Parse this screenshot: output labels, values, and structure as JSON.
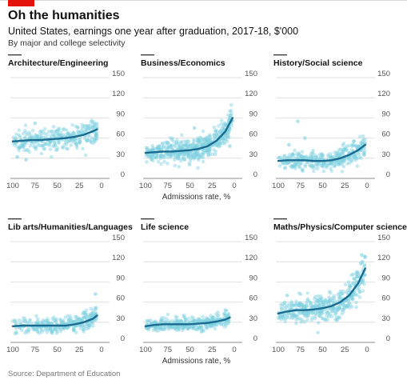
{
  "title": "Oh the humanities",
  "subtitle": "United States, earnings one year after graduation, 2017-18, $'000",
  "subtitle2": "By major and college selectivity",
  "source": "Source: Department of Education",
  "colors": {
    "dots": "#7fd0df",
    "trend": "#1b6a8f",
    "accent": "#e3120b",
    "grid": "#d9d9d9"
  },
  "chart_data": [
    {
      "type": "scatter",
      "title": "Architecture/Engineering",
      "xlabel": "",
      "ylabel": "",
      "xlim": [
        100,
        0
      ],
      "ylim": [
        0,
        150
      ],
      "x_ticks": [
        100,
        75,
        50,
        25,
        0
      ],
      "y_ticks": [
        0,
        30,
        60,
        90,
        120,
        150
      ],
      "trend": {
        "x": [
          100,
          90,
          80,
          70,
          60,
          50,
          40,
          30,
          20,
          10,
          5
        ],
        "y": [
          55,
          56,
          57,
          57,
          58,
          59,
          60,
          62,
          65,
          70,
          73
        ]
      },
      "points": {
        "x_range": [
          5,
          100
        ],
        "center": 57,
        "spread": 8,
        "count": 320,
        "extra": [
          [
            75,
            82
          ],
          [
            85,
            28
          ],
          [
            95,
            32
          ],
          [
            15,
            78
          ]
        ]
      }
    },
    {
      "type": "scatter",
      "title": "Business/Economics",
      "xlabel": "Admissions rate, %",
      "ylabel": "",
      "xlim": [
        100,
        0
      ],
      "ylim": [
        0,
        150
      ],
      "x_ticks": [
        100,
        75,
        50,
        25,
        0
      ],
      "y_ticks": [
        0,
        30,
        60,
        90,
        120,
        150
      ],
      "trend": {
        "x": [
          100,
          90,
          80,
          70,
          60,
          50,
          40,
          30,
          20,
          10,
          2
        ],
        "y": [
          38,
          39,
          40,
          40,
          41,
          42,
          44,
          48,
          56,
          70,
          90
        ]
      },
      "points": {
        "x_range": [
          2,
          100
        ],
        "center": 40,
        "spread": 9,
        "count": 520,
        "extra": [
          [
            12,
            72
          ],
          [
            8,
            80
          ],
          [
            3,
            85
          ],
          [
            20,
            65
          ],
          [
            5,
            48
          ],
          [
            45,
            75
          ]
        ]
      }
    },
    {
      "type": "scatter",
      "title": "History/Social science",
      "xlabel": "",
      "ylabel": "",
      "xlim": [
        100,
        0
      ],
      "ylim": [
        0,
        150
      ],
      "x_ticks": [
        100,
        75,
        50,
        25,
        0
      ],
      "y_ticks": [
        0,
        30,
        60,
        90,
        120,
        150
      ],
      "trend": {
        "x": [
          100,
          90,
          80,
          70,
          60,
          50,
          40,
          30,
          20,
          10,
          2
        ],
        "y": [
          26,
          27,
          27,
          27,
          26,
          26,
          27,
          30,
          35,
          42,
          50
        ]
      },
      "points": {
        "x_range": [
          2,
          100
        ],
        "center": 28,
        "spread": 7,
        "count": 360,
        "extra": [
          [
            78,
            85
          ],
          [
            70,
            60
          ],
          [
            15,
            55
          ],
          [
            5,
            50
          ],
          [
            88,
            50
          ],
          [
            3,
            35
          ]
        ]
      }
    },
    {
      "type": "scatter",
      "title": "Lib arts/Humanities/Languages",
      "xlabel": "",
      "ylabel": "",
      "xlim": [
        100,
        0
      ],
      "ylim": [
        0,
        150
      ],
      "x_ticks": [
        100,
        75,
        50,
        25,
        0
      ],
      "y_ticks": [
        0,
        30,
        60,
        90,
        120,
        150
      ],
      "trend": {
        "x": [
          100,
          90,
          80,
          70,
          60,
          50,
          40,
          30,
          20,
          10,
          5
        ],
        "y": [
          24,
          25,
          25,
          25,
          25,
          25,
          25,
          27,
          30,
          35,
          40
        ]
      },
      "points": {
        "x_range": [
          5,
          100
        ],
        "center": 26,
        "spread": 6,
        "count": 300,
        "extra": [
          [
            7,
            72
          ],
          [
            20,
            45
          ],
          [
            12,
            42
          ]
        ]
      }
    },
    {
      "type": "scatter",
      "title": "Life science",
      "xlabel": "Admissions rate, %",
      "ylabel": "",
      "xlim": [
        100,
        0
      ],
      "ylim": [
        0,
        150
      ],
      "x_ticks": [
        100,
        75,
        50,
        25,
        0
      ],
      "y_ticks": [
        0,
        30,
        60,
        90,
        120,
        150
      ],
      "trend": {
        "x": [
          100,
          90,
          80,
          70,
          60,
          50,
          40,
          30,
          20,
          10,
          5
        ],
        "y": [
          24,
          26,
          27,
          27,
          27,
          27,
          28,
          29,
          31,
          34,
          37
        ]
      },
      "points": {
        "x_range": [
          5,
          100
        ],
        "center": 28,
        "spread": 5,
        "count": 360,
        "extra": [
          [
            10,
            48
          ],
          [
            18,
            40
          ]
        ]
      }
    },
    {
      "type": "scatter",
      "title": "Maths/Physics/Computer science",
      "xlabel": "",
      "ylabel": "",
      "xlim": [
        100,
        0
      ],
      "ylim": [
        0,
        150
      ],
      "x_ticks": [
        100,
        75,
        50,
        25,
        0
      ],
      "y_ticks": [
        0,
        30,
        60,
        90,
        120,
        150
      ],
      "trend": {
        "x": [
          100,
          90,
          80,
          70,
          60,
          50,
          40,
          30,
          20,
          10,
          2
        ],
        "y": [
          43,
          46,
          48,
          48,
          49,
          51,
          54,
          60,
          70,
          88,
          110
        ]
      },
      "points": {
        "x_range": [
          2,
          100
        ],
        "center": 48,
        "spread": 10,
        "count": 430,
        "extra": [
          [
            6,
            130
          ],
          [
            5,
            120
          ],
          [
            3,
            100
          ],
          [
            10,
            85
          ],
          [
            14,
            95
          ],
          [
            8,
            75
          ],
          [
            20,
            70
          ],
          [
            25,
            65
          ],
          [
            90,
            70
          ]
        ]
      }
    }
  ]
}
